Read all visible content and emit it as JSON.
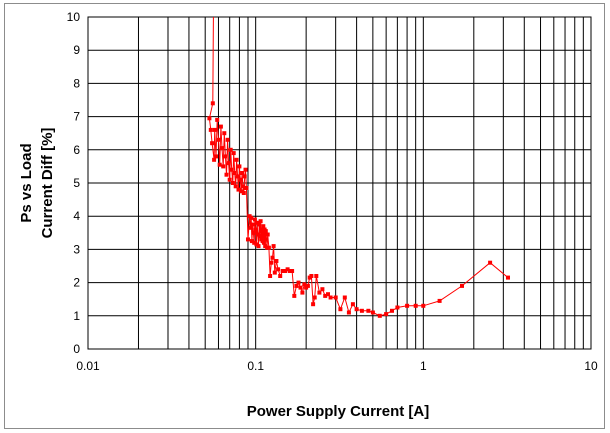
{
  "chart_data": {
    "type": "line",
    "xlabel": "Power Supply Current [A]",
    "ylabel_lines": [
      "Ps vs Load",
      "Current Diff [%]"
    ],
    "x_scale": "log",
    "xlim": [
      0.01,
      10
    ],
    "ylim": [
      0,
      10
    ],
    "x_ticks": [
      {
        "value": 0.01,
        "label": "0.01"
      },
      {
        "value": 0.1,
        "label": "0.1"
      },
      {
        "value": 1,
        "label": "1"
      },
      {
        "value": 10,
        "label": "10"
      }
    ],
    "y_ticks": [
      0,
      1,
      2,
      3,
      4,
      5,
      6,
      7,
      8,
      9,
      10
    ],
    "grid": true,
    "series": [
      {
        "color": "#ff0000",
        "marker": "square",
        "points": [
          [
            0.056,
            10.0
          ],
          [
            0.0555,
            7.4
          ],
          [
            0.053,
            6.95
          ],
          [
            0.054,
            6.6
          ],
          [
            0.055,
            6.2
          ],
          [
            0.0565,
            5.7
          ],
          [
            0.057,
            6.6
          ],
          [
            0.058,
            5.8
          ],
          [
            0.059,
            6.9
          ],
          [
            0.06,
            6.3
          ],
          [
            0.061,
            5.55
          ],
          [
            0.062,
            6.7
          ],
          [
            0.063,
            6.05
          ],
          [
            0.064,
            5.5
          ],
          [
            0.065,
            6.5
          ],
          [
            0.066,
            5.8
          ],
          [
            0.067,
            5.25
          ],
          [
            0.068,
            6.3
          ],
          [
            0.069,
            5.6
          ],
          [
            0.07,
            5.1
          ],
          [
            0.071,
            6.0
          ],
          [
            0.072,
            5.4
          ],
          [
            0.073,
            5.0
          ],
          [
            0.074,
            5.9
          ],
          [
            0.075,
            5.3
          ],
          [
            0.076,
            4.9
          ],
          [
            0.077,
            5.7
          ],
          [
            0.078,
            5.2
          ],
          [
            0.079,
            4.8
          ],
          [
            0.08,
            5.5
          ],
          [
            0.081,
            5.1
          ],
          [
            0.082,
            4.75
          ],
          [
            0.083,
            5.3
          ],
          [
            0.084,
            4.9
          ],
          [
            0.085,
            4.7
          ],
          [
            0.086,
            5.2
          ],
          [
            0.087,
            5.4
          ],
          [
            0.088,
            4.85
          ],
          [
            0.09,
            3.3
          ],
          [
            0.092,
            4.0
          ],
          [
            0.093,
            3.65
          ],
          [
            0.094,
            3.95
          ],
          [
            0.095,
            3.25
          ],
          [
            0.096,
            3.75
          ],
          [
            0.097,
            3.5
          ],
          [
            0.098,
            3.2
          ],
          [
            0.099,
            3.9
          ],
          [
            0.1,
            3.6
          ],
          [
            0.101,
            3.15
          ],
          [
            0.102,
            3.8
          ],
          [
            0.103,
            3.45
          ],
          [
            0.104,
            3.1
          ],
          [
            0.105,
            3.75
          ],
          [
            0.106,
            3.4
          ],
          [
            0.107,
            3.85
          ],
          [
            0.108,
            3.3
          ],
          [
            0.109,
            3.6
          ],
          [
            0.11,
            3.25
          ],
          [
            0.111,
            3.7
          ],
          [
            0.112,
            3.2
          ],
          [
            0.113,
            3.6
          ],
          [
            0.114,
            3.1
          ],
          [
            0.115,
            3.55
          ],
          [
            0.116,
            3.3
          ],
          [
            0.117,
            3.05
          ],
          [
            0.118,
            3.45
          ],
          [
            0.12,
            3.05
          ],
          [
            0.122,
            2.2
          ],
          [
            0.124,
            2.6
          ],
          [
            0.126,
            2.75
          ],
          [
            0.128,
            3.1
          ],
          [
            0.13,
            2.3
          ],
          [
            0.133,
            2.65
          ],
          [
            0.136,
            2.4
          ],
          [
            0.14,
            2.2
          ],
          [
            0.145,
            2.35
          ],
          [
            0.15,
            2.35
          ],
          [
            0.155,
            2.4
          ],
          [
            0.16,
            2.35
          ],
          [
            0.165,
            2.35
          ],
          [
            0.17,
            1.6
          ],
          [
            0.175,
            1.9
          ],
          [
            0.18,
            2.0
          ],
          [
            0.185,
            1.85
          ],
          [
            0.19,
            1.7
          ],
          [
            0.195,
            1.95
          ],
          [
            0.2,
            1.85
          ],
          [
            0.205,
            1.9
          ],
          [
            0.21,
            2.15
          ],
          [
            0.215,
            2.2
          ],
          [
            0.22,
            1.35
          ],
          [
            0.225,
            1.55
          ],
          [
            0.23,
            2.2
          ],
          [
            0.24,
            1.7
          ],
          [
            0.25,
            1.8
          ],
          [
            0.26,
            1.6
          ],
          [
            0.27,
            1.65
          ],
          [
            0.28,
            1.55
          ],
          [
            0.3,
            1.55
          ],
          [
            0.32,
            1.2
          ],
          [
            0.34,
            1.55
          ],
          [
            0.36,
            1.1
          ],
          [
            0.38,
            1.35
          ],
          [
            0.4,
            1.2
          ],
          [
            0.43,
            1.15
          ],
          [
            0.47,
            1.15
          ],
          [
            0.5,
            1.1
          ],
          [
            0.55,
            1.0
          ],
          [
            0.6,
            1.05
          ],
          [
            0.65,
            1.15
          ],
          [
            0.7,
            1.25
          ],
          [
            0.8,
            1.3
          ],
          [
            0.9,
            1.3
          ],
          [
            1.0,
            1.3
          ],
          [
            1.25,
            1.45
          ],
          [
            1.7,
            1.9
          ],
          [
            2.5,
            2.6
          ],
          [
            3.2,
            2.15
          ]
        ]
      }
    ]
  }
}
